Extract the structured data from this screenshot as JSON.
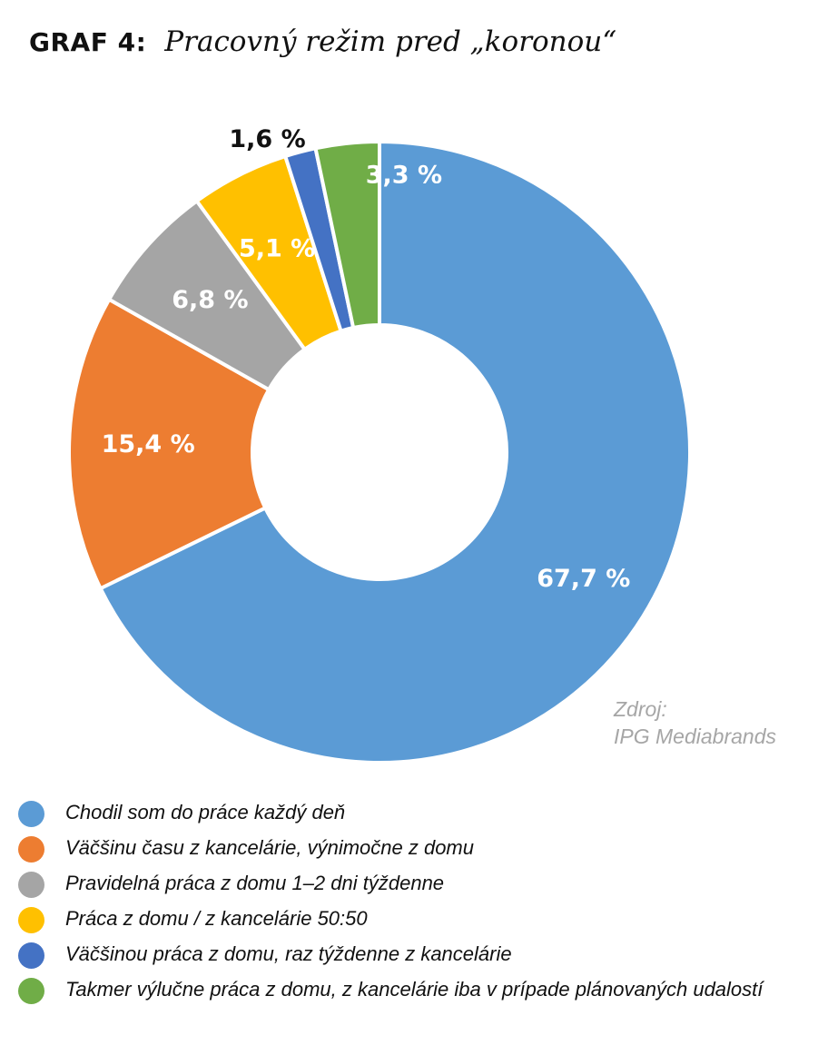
{
  "header": {
    "label": "GRAF 4:",
    "title": "Pracovný režim pred „koronou“"
  },
  "source": {
    "line1": "Zdroj:",
    "line2": "IPG Mediabrands"
  },
  "chart_data": {
    "type": "pie",
    "variant": "donut",
    "title": "Pracovný režim pred „koronou“",
    "unit": "%",
    "start_angle": "12 o'clock, clockwise",
    "slices": [
      {
        "name": "Chodil som do práce každý deň",
        "value": 67.7,
        "label": "67,7 %",
        "color": "#5b9bd5",
        "label_color": "#ffffff"
      },
      {
        "name": "Väčšinu času z kancelárie, výnimočne z domu",
        "value": 15.4,
        "label": "15,4 %",
        "color": "#ed7d31",
        "label_color": "#ffffff"
      },
      {
        "name": "Pravidelná práca z domu 1–2 dni týždenne",
        "value": 6.8,
        "label": "6,8 %",
        "color": "#a5a5a5",
        "label_color": "#ffffff"
      },
      {
        "name": "Práca z domu / z kancelárie 50:50",
        "value": 5.1,
        "label": "5,1 %",
        "color": "#ffc000",
        "label_color": "#ffffff"
      },
      {
        "name": "Väčšinou práca z domu, raz týždenne z kancelárie",
        "value": 1.6,
        "label": "1,6 %",
        "color": "#4472c4",
        "label_color": "#111111"
      },
      {
        "name": "Takmer výlučne práca z domu, z kancelárie iba v prípade plánovaných udalostí",
        "value": 3.3,
        "label": "3,3 %",
        "color": "#70ad47",
        "label_color": "#ffffff"
      }
    ],
    "legend_position": "bottom"
  }
}
